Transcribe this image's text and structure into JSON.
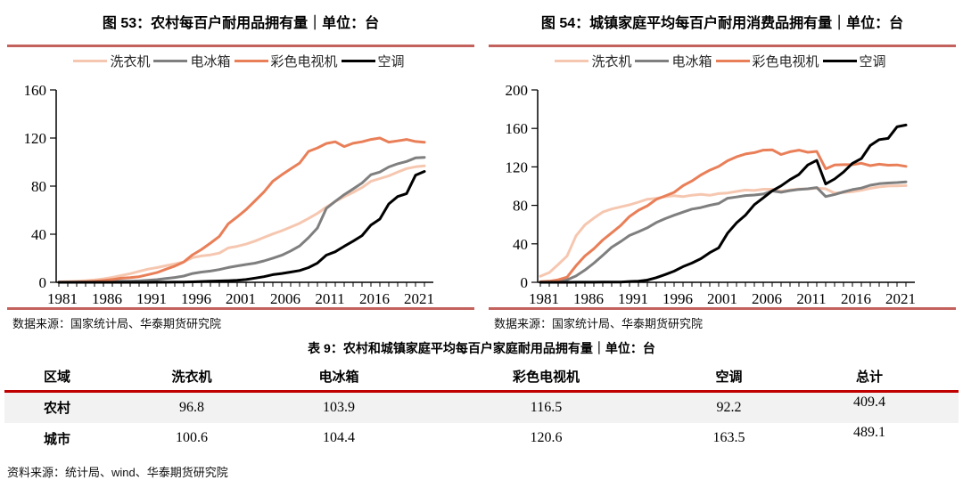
{
  "colors": {
    "chart_divider": "#C3615C",
    "table_header_rule": "#C00000",
    "row_stripe": "#F2F2F2",
    "series_washer": "#F6C7B0",
    "series_fridge": "#7F7F7F",
    "series_tv": "#E97F58",
    "series_ac": "#000000"
  },
  "chart_data": [
    {
      "type": "line",
      "title": "图 53：农村每百户耐用品拥有量｜单位：台",
      "source_note": "数据来源：国家统计局、华泰期货研究院",
      "legend_position": "top",
      "grid": false,
      "ylim": [
        0,
        160
      ],
      "yticks": [
        0,
        40,
        80,
        120,
        160
      ],
      "x_tick_labels": [
        1981,
        1986,
        1991,
        1996,
        2001,
        2006,
        2011,
        2016,
        2021
      ],
      "x": [
        1981,
        1982,
        1983,
        1984,
        1985,
        1986,
        1987,
        1988,
        1989,
        1990,
        1991,
        1992,
        1993,
        1994,
        1995,
        1996,
        1997,
        1998,
        1999,
        2000,
        2001,
        2002,
        2003,
        2004,
        2005,
        2006,
        2007,
        2008,
        2009,
        2010,
        2011,
        2012,
        2013,
        2014,
        2015,
        2016,
        2017,
        2018,
        2019,
        2020,
        2021,
        2022
      ],
      "series": [
        {
          "name": "洗衣机",
          "color": "#F6C7B0",
          "values": [
            0.4,
            0.6,
            0.9,
            1.4,
            1.9,
            2.9,
            4.1,
            5.6,
            7.2,
            9.1,
            11.0,
            12.2,
            13.8,
            15.3,
            16.9,
            20.5,
            21.9,
            22.8,
            24.3,
            28.6,
            29.9,
            31.8,
            34.3,
            37.3,
            40.2,
            42.9,
            45.9,
            49.1,
            53.1,
            57.3,
            62.6,
            67.2,
            71.2,
            74.8,
            78.8,
            84.0,
            86.3,
            88.5,
            91.6,
            94.6,
            96.1,
            96.8
          ]
        },
        {
          "name": "电冰箱",
          "color": "#7F7F7F",
          "values": [
            0.0,
            0.0,
            0.1,
            0.1,
            0.1,
            0.3,
            0.6,
            0.9,
            1.0,
            1.2,
            1.6,
            2.2,
            3.1,
            4.0,
            5.2,
            7.3,
            8.5,
            9.3,
            10.6,
            12.3,
            13.6,
            14.8,
            15.9,
            17.8,
            20.1,
            22.5,
            26.1,
            30.2,
            37.1,
            45.2,
            61.5,
            67.3,
            72.9,
            77.6,
            82.6,
            89.5,
            91.7,
            95.9,
            98.6,
            100.5,
            103.5,
            103.9
          ]
        },
        {
          "name": "彩色电视机",
          "color": "#E97F58",
          "values": [
            0.0,
            0.1,
            0.1,
            0.4,
            0.8,
            1.5,
            2.3,
            3.4,
            3.9,
            4.7,
            6.4,
            8.1,
            10.9,
            13.5,
            16.9,
            22.9,
            27.3,
            32.6,
            38.2,
            48.7,
            54.4,
            60.5,
            67.8,
            75.1,
            84.1,
            89.4,
            94.4,
            99.2,
            108.9,
            111.8,
            115.5,
            116.9,
            112.9,
            115.6,
            116.9,
            118.8,
            120.0,
            116.6,
            117.6,
            118.8,
            117.1,
            116.5
          ]
        },
        {
          "name": "空调",
          "color": "#000000",
          "values": [
            0.0,
            0.0,
            0.0,
            0.0,
            0.0,
            0.0,
            0.0,
            0.0,
            0.0,
            0.0,
            0.0,
            0.1,
            0.1,
            0.2,
            0.2,
            0.4,
            0.7,
            0.9,
            1.1,
            1.3,
            1.7,
            2.3,
            3.5,
            4.7,
            6.4,
            7.3,
            8.5,
            9.8,
            12.2,
            16.0,
            22.6,
            25.4,
            29.9,
            34.2,
            38.8,
            47.6,
            52.6,
            65.2,
            71.3,
            73.8,
            89.0,
            92.2
          ]
        }
      ]
    },
    {
      "type": "line",
      "title": "图 54：城镇家庭平均每百户耐用消费品拥有量｜单位：台",
      "source_note": "数据来源：国家统计局、华泰期货研究院",
      "legend_position": "top",
      "grid": false,
      "ylim": [
        0,
        200
      ],
      "yticks": [
        0,
        40,
        80,
        120,
        160,
        200
      ],
      "x_tick_labels": [
        1981,
        1986,
        1991,
        1996,
        2001,
        2006,
        2011,
        2016,
        2021
      ],
      "x": [
        1981,
        1982,
        1983,
        1984,
        1985,
        1986,
        1987,
        1988,
        1989,
        1990,
        1991,
        1992,
        1993,
        1994,
        1995,
        1996,
        1997,
        1998,
        1999,
        2000,
        2001,
        2002,
        2003,
        2004,
        2005,
        2006,
        2007,
        2008,
        2009,
        2010,
        2011,
        2012,
        2013,
        2014,
        2015,
        2016,
        2017,
        2018,
        2019,
        2020,
        2021,
        2022
      ],
      "series": [
        {
          "name": "洗衣机",
          "color": "#F6C7B0",
          "values": [
            6.3,
            10.1,
            18.5,
            27.4,
            48.3,
            59.7,
            66.8,
            73.1,
            76.2,
            78.4,
            80.6,
            83.3,
            86.4,
            87.3,
            89.0,
            90.1,
            89.1,
            90.6,
            91.4,
            90.5,
            92.2,
            92.9,
            94.4,
            95.9,
            95.5,
            96.8,
            96.8,
            94.7,
            96.0,
            96.9,
            97.1,
            98.0,
            97.2,
            92.7,
            93.4,
            94.2,
            95.7,
            97.7,
            99.2,
            100.1,
            100.3,
            100.6
          ]
        },
        {
          "name": "电冰箱",
          "color": "#7F7F7F",
          "values": [
            0.2,
            0.7,
            1.2,
            2.5,
            6.6,
            12.7,
            19.9,
            28.1,
            36.5,
            42.3,
            48.7,
            52.6,
            56.7,
            62.1,
            66.2,
            69.7,
            73.0,
            76.1,
            77.7,
            80.1,
            81.9,
            87.4,
            88.7,
            90.2,
            90.7,
            91.8,
            95.0,
            93.6,
            95.4,
            96.6,
            97.2,
            98.5,
            89.2,
            91.3,
            94.0,
            96.4,
            98.0,
            100.9,
            102.5,
            103.2,
            103.7,
            104.4
          ]
        },
        {
          "name": "彩色电视机",
          "color": "#E97F58",
          "values": [
            0.6,
            1.1,
            2.6,
            5.4,
            17.2,
            27.4,
            34.9,
            44.0,
            51.5,
            59.0,
            68.4,
            74.9,
            79.5,
            86.2,
            89.8,
            93.5,
            100.5,
            105.4,
            111.6,
            116.6,
            120.5,
            126.4,
            130.5,
            133.4,
            134.8,
            137.4,
            137.8,
            132.9,
            135.7,
            137.4,
            135.2,
            136.1,
            118.0,
            122.0,
            122.3,
            122.3,
            123.8,
            121.3,
            122.8,
            121.8,
            122.0,
            120.6
          ]
        },
        {
          "name": "空调",
          "color": "#000000",
          "values": [
            0.0,
            0.0,
            0.0,
            0.0,
            0.1,
            0.1,
            0.1,
            0.2,
            0.3,
            0.3,
            0.8,
            1.2,
            2.3,
            4.8,
            8.1,
            11.6,
            16.3,
            20.0,
            24.5,
            30.8,
            35.8,
            51.1,
            61.8,
            69.8,
            80.7,
            87.8,
            95.1,
            100.3,
            106.8,
            112.1,
            122.0,
            126.8,
            102.2,
            107.4,
            114.6,
            123.7,
            128.6,
            142.2,
            148.3,
            149.6,
            161.7,
            163.5
          ]
        }
      ]
    }
  ],
  "table": {
    "title": "表 9：农村和城镇家庭平均每百户家庭耐用品拥有量｜单位：台",
    "columns": [
      "区域",
      "洗衣机",
      "电冰箱",
      "彩色电视机",
      "空调",
      "总计"
    ],
    "rows": [
      {
        "region": "农村",
        "values": [
          "96.8",
          "103.9",
          "116.5",
          "92.2",
          "409.4"
        ]
      },
      {
        "region": "城市",
        "values": [
          "100.6",
          "104.4",
          "120.6",
          "163.5",
          "489.1"
        ]
      }
    ],
    "source": "资料来源：统计局、wind、华泰期货研究院"
  }
}
